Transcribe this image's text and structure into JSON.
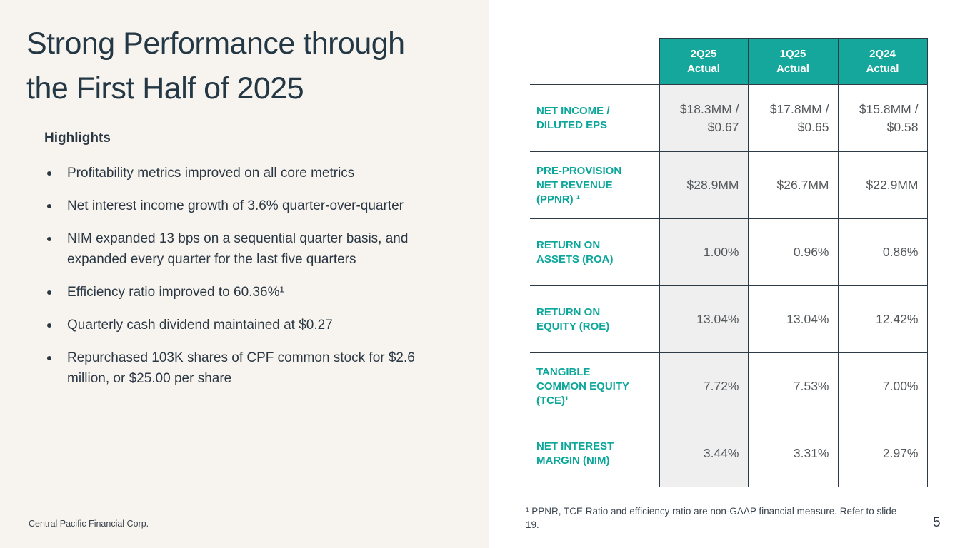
{
  "slide": {
    "title_lines": [
      "Strong Performance through",
      "the First Half of 2025"
    ],
    "footer": "Central Pacific Financial Corp.",
    "footnote": "¹ PPNR, TCE Ratio and efficiency ratio are non-GAAP financial measure. Refer to slide 19.",
    "page_number": "5"
  },
  "highlights": {
    "heading": "Highlights",
    "bullets": [
      "Profitability metrics improved on all core metrics",
      "Net interest income growth of 3.6% quarter-over-quarter",
      "NIM expanded 13 bps on a sequential quarter basis, and expanded every quarter for the last five quarters",
      "Efficiency ratio improved to 60.36%¹",
      "Quarterly cash dividend maintained at $0.27",
      "Repurchased 103K shares of CPF common stock for $2.6 million, or $25.00 per share"
    ]
  },
  "table": {
    "columns": [
      "2Q25\nActual",
      "1Q25\nActual",
      "2Q24\nActual"
    ],
    "rows": [
      {
        "label": "NET INCOME /\nDILUTED EPS",
        "values": [
          "$18.3MM /\n$0.67",
          "$17.8MM /\n$0.65",
          "$15.8MM /\n$0.58"
        ]
      },
      {
        "label": "PRE-PROVISION\nNET REVENUE\n(PPNR) ¹",
        "values": [
          "$28.9MM",
          "$26.7MM",
          "$22.9MM"
        ]
      },
      {
        "label": "RETURN ON\nASSETS (ROA)",
        "values": [
          "1.00%",
          "0.96%",
          "0.86%"
        ]
      },
      {
        "label": "RETURN ON\nEQUITY (ROE)",
        "values": [
          "13.04%",
          "13.04%",
          "12.42%"
        ]
      },
      {
        "label": "TANGIBLE\nCOMMON EQUITY\n(TCE)¹",
        "values": [
          "7.72%",
          "7.53%",
          "7.00%"
        ]
      },
      {
        "label": "NET INTEREST\nMARGIN (NIM)",
        "values": [
          "3.44%",
          "3.31%",
          "2.97%"
        ]
      }
    ]
  },
  "colors": {
    "accent_teal": "#15A79C",
    "title_navy": "#233744",
    "left_background": "#F7F3EE",
    "shaded_column": "#EFEFEF",
    "value_gray": "#54585B",
    "border": "#2E3A44"
  }
}
